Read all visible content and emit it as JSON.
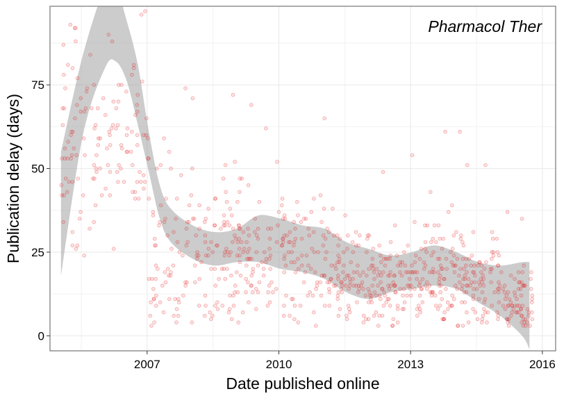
{
  "chart_data": {
    "type": "scatter",
    "title": "Pharmacol Ther",
    "xlabel": "Date published online",
    "ylabel": "Publication delay (days)",
    "x_ticks": [
      "2007",
      "2010",
      "2013",
      "2016"
    ],
    "y_ticks": [
      "0",
      "25",
      "50",
      "75"
    ],
    "x_range": [
      "2004-10-15",
      "2016-04-20"
    ],
    "ylim": [
      -4.5,
      98.5
    ],
    "grid": true,
    "point_color": "#e41a1c",
    "smooth_band_color": "#999999",
    "smooth_fit": {
      "x": [
        "2005-01",
        "2005-07",
        "2006-01",
        "2006-04",
        "2006-07",
        "2006-10",
        "2007-01",
        "2007-04",
        "2007-07",
        "2008-01",
        "2008-07",
        "2009-01",
        "2009-07",
        "2010-01",
        "2010-07",
        "2011-01",
        "2011-07",
        "2012-01",
        "2012-07",
        "2013-01",
        "2013-07",
        "2014-01",
        "2014-07",
        "2015-01",
        "2015-07",
        "2015-09"
      ],
      "y": [
        37,
        72,
        93,
        93,
        85,
        72,
        55,
        40,
        33,
        28,
        26,
        27,
        29,
        28,
        26,
        25,
        22,
        19,
        18,
        19,
        20,
        19,
        16,
        13,
        12,
        12
      ],
      "lower": [
        18,
        60,
        80,
        82,
        76,
        63,
        49,
        35,
        28,
        23,
        21,
        22,
        22,
        20,
        19,
        17,
        13,
        11,
        13,
        14,
        15,
        14,
        10,
        6,
        0,
        -4
      ],
      "upper": [
        55,
        84,
        104,
        104,
        94,
        81,
        61,
        45,
        38,
        33,
        31,
        32,
        36,
        35,
        33,
        32,
        28,
        26,
        24,
        25,
        27,
        25,
        22,
        21,
        22,
        22
      ]
    },
    "point_clusters": [
      {
        "x_start": "2005-01",
        "x_end": "2005-12",
        "y_mean": 58,
        "y_sd": 16,
        "count": 70
      },
      {
        "x_start": "2006-01",
        "x_end": "2006-12",
        "y_mean": 60,
        "y_sd": 15,
        "count": 60
      },
      {
        "x_start": "2007-01",
        "x_end": "2007-12",
        "y_mean": 26,
        "y_sd": 14,
        "count": 70
      },
      {
        "x_start": "2008-01",
        "x_end": "2008-12",
        "y_mean": 25,
        "y_sd": 11,
        "count": 80
      },
      {
        "x_start": "2009-01",
        "x_end": "2009-12",
        "y_mean": 24,
        "y_sd": 10,
        "count": 80
      },
      {
        "x_start": "2010-01",
        "x_end": "2010-12",
        "y_mean": 24,
        "y_sd": 10,
        "count": 80
      },
      {
        "x_start": "2011-01",
        "x_end": "2011-12",
        "y_mean": 20,
        "y_sd": 8,
        "count": 90
      },
      {
        "x_start": "2012-01",
        "x_end": "2012-12",
        "y_mean": 17,
        "y_sd": 7,
        "count": 100
      },
      {
        "x_start": "2013-01",
        "x_end": "2013-12",
        "y_mean": 18,
        "y_sd": 8,
        "count": 100
      },
      {
        "x_start": "2014-01",
        "x_end": "2014-12",
        "y_mean": 15,
        "y_sd": 8,
        "count": 100
      },
      {
        "x_start": "2015-01",
        "x_end": "2015-09",
        "y_mean": 10,
        "y_sd": 6,
        "count": 70
      }
    ],
    "outlier_points": [
      {
        "x": "2005-05",
        "y": 92
      },
      {
        "x": "2005-05",
        "y": 88
      },
      {
        "x": "2005-09",
        "y": 84
      },
      {
        "x": "2006-02",
        "y": 90
      },
      {
        "x": "2006-03",
        "y": 88
      },
      {
        "x": "2006-11",
        "y": 96
      },
      {
        "x": "2006-12",
        "y": 97
      },
      {
        "x": "2007-11",
        "y": 74
      },
      {
        "x": "2008-01",
        "y": 71
      },
      {
        "x": "2008-12",
        "y": 72
      },
      {
        "x": "2009-05",
        "y": 69
      },
      {
        "x": "2009-09",
        "y": 62
      },
      {
        "x": "2011-01",
        "y": 65
      },
      {
        "x": "2012-05",
        "y": 49
      },
      {
        "x": "2013-01",
        "y": 54
      },
      {
        "x": "2013-10",
        "y": 61
      },
      {
        "x": "2014-02",
        "y": 61
      },
      {
        "x": "2014-04",
        "y": 51
      },
      {
        "x": "2014-09",
        "y": 51
      },
      {
        "x": "2015-03",
        "y": 37
      },
      {
        "x": "2015-07",
        "y": 35
      },
      {
        "x": "2007-03",
        "y": 9
      },
      {
        "x": "2008-06",
        "y": 5
      },
      {
        "x": "2012-09",
        "y": 4
      },
      {
        "x": "2014-08",
        "y": 4
      },
      {
        "x": "2015-08",
        "y": 3
      }
    ]
  }
}
